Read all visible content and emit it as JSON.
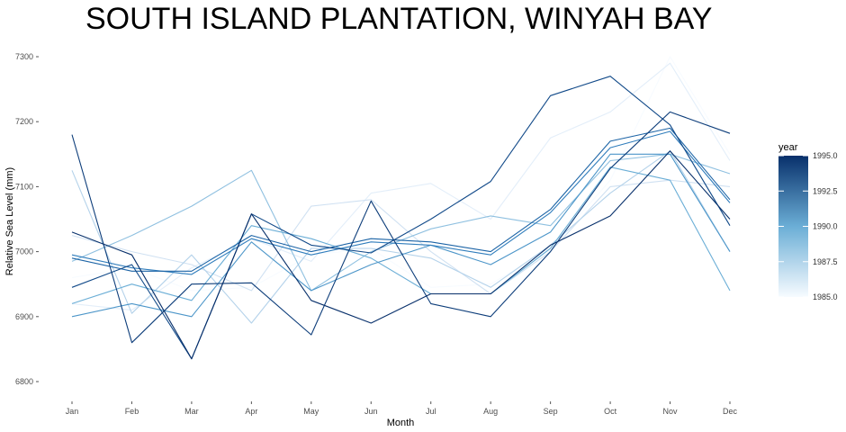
{
  "chart_data": {
    "type": "line",
    "title": "SOUTH ISLAND PLANTATION, WINYAH BAY",
    "xlabel": "Month",
    "ylabel": "Relative Sea Level (mm)",
    "categories": [
      "Jan",
      "Feb",
      "Mar",
      "Apr",
      "May",
      "Jun",
      "Jul",
      "Aug",
      "Sep",
      "Oct",
      "Nov",
      "Dec"
    ],
    "ylim": [
      6750,
      7330
    ],
    "yticks": [
      6800,
      6900,
      7000,
      7100,
      7200,
      7300
    ],
    "grid": false,
    "legend": {
      "title": "year",
      "position": "right",
      "type": "colorbar",
      "min": 1985.0,
      "max": 1995.0,
      "ticks": [
        "1985.0",
        "1987.5",
        "1990.0",
        "1992.5",
        "1995.0"
      ],
      "color_low": "#f7fbff",
      "color_high": "#08306b"
    },
    "series": [
      {
        "year": 1985,
        "values": [
          6960,
          6975,
          6940,
          6945,
          6995,
          7005,
          6945,
          6950,
          7005,
          7110,
          7300,
          7150
        ]
      },
      {
        "year": 1986,
        "values": [
          6920,
          6910,
          6975,
          7020,
          6985,
          7090,
          7105,
          7050,
          7175,
          7215,
          7290,
          7140
        ]
      },
      {
        "year": 1987,
        "values": [
          7025,
          7000,
          6980,
          6940,
          7070,
          7080,
          7000,
          6935,
          7000,
          7100,
          7110,
          7100
        ]
      },
      {
        "year": 1988,
        "values": [
          7125,
          6905,
          6995,
          6890,
          7005,
          7005,
          6990,
          6945,
          7010,
          7090,
          7155,
          7000
        ]
      },
      {
        "year": 1989,
        "values": [
          6985,
          7025,
          7070,
          7125,
          6940,
          7000,
          7035,
          7055,
          7040,
          7140,
          7150,
          7120
        ]
      },
      {
        "year": 1990,
        "values": [
          6920,
          6950,
          6925,
          7040,
          7020,
          6990,
          6935,
          6935,
          7005,
          7130,
          7110,
          6940
        ]
      },
      {
        "year": 1991,
        "values": [
          6900,
          6920,
          6900,
          7015,
          6940,
          6980,
          7010,
          6980,
          7030,
          7150,
          7150,
          7000
        ]
      },
      {
        "year": 1992,
        "values": [
          6995,
          6975,
          6965,
          7020,
          6995,
          7015,
          7010,
          6995,
          7060,
          7160,
          7185,
          7075
        ]
      },
      {
        "year": 1993,
        "values": [
          6990,
          6970,
          6970,
          7025,
          7000,
          7020,
          7015,
          7000,
          7065,
          7170,
          7190,
          7080
        ]
      },
      {
        "year": 1994,
        "values": [
          6945,
          6980,
          6835,
          7058,
          7010,
          6998,
          7050,
          7108,
          7240,
          7270,
          7195,
          7040
        ]
      },
      {
        "year": 1994.5,
        "values": [
          7180,
          6860,
          6950,
          6952,
          6872,
          7078,
          6920,
          6900,
          7000,
          7128,
          7215,
          7182
        ]
      },
      {
        "year": 1995,
        "values": [
          7030,
          6995,
          6835,
          7058,
          6925,
          6890,
          6935,
          6935,
          7010,
          7055,
          7155,
          7050
        ]
      }
    ]
  }
}
